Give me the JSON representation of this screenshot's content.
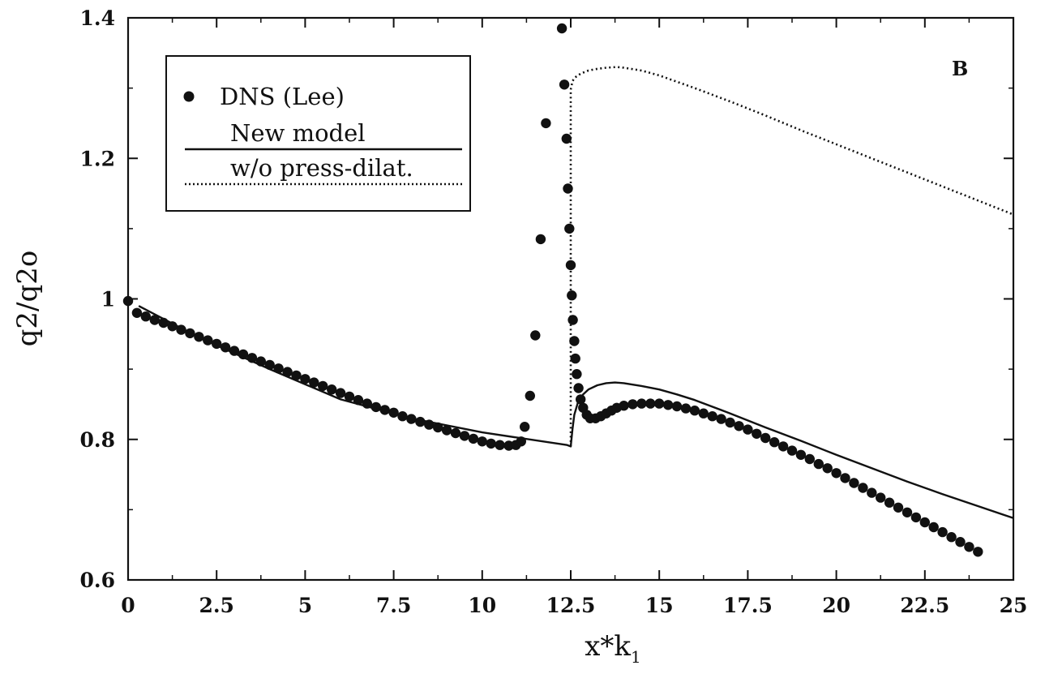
{
  "chart_data": {
    "type": "scatter",
    "panel_label": "B",
    "xlabel": "x*k",
    "xlabel_subscript": "1",
    "ylabel": "q2/q2o",
    "xlim": [
      0,
      25
    ],
    "ylim": [
      0.6,
      1.4
    ],
    "x_ticks": [
      0,
      2.5,
      5,
      7.5,
      10,
      12.5,
      15,
      17.5,
      20,
      22.5,
      25
    ],
    "x_tick_labels": [
      "0",
      "2.5",
      "5",
      "7.5",
      "10",
      "12.5",
      "15",
      "17.5",
      "20",
      "22.5",
      "25"
    ],
    "y_ticks": [
      0.6,
      0.8,
      1,
      1.2,
      1.4
    ],
    "y_tick_labels": [
      "0.6",
      "0.8",
      "1",
      "1.2",
      "1.4"
    ],
    "legend_position": "top-left",
    "colors": {
      "ink": "#111111",
      "background": "#ffffff"
    },
    "series": [
      {
        "name": "DNS (Lee)",
        "style": "markers",
        "x": [
          0,
          0.25,
          0.5,
          0.75,
          1,
          1.25,
          1.5,
          1.75,
          2,
          2.25,
          2.5,
          2.75,
          3,
          3.25,
          3.5,
          3.75,
          4,
          4.25,
          4.5,
          4.75,
          5,
          5.25,
          5.5,
          5.75,
          6,
          6.25,
          6.5,
          6.75,
          7,
          7.25,
          7.5,
          7.75,
          8,
          8.25,
          8.5,
          8.75,
          9,
          9.25,
          9.5,
          9.75,
          10,
          10.25,
          10.5,
          10.75,
          10.95,
          11.1,
          11.2,
          11.35,
          11.5,
          11.65,
          11.8,
          12.25,
          12.32,
          12.38,
          12.42,
          12.46,
          12.5,
          12.53,
          12.56,
          12.6,
          12.63,
          12.67,
          12.72,
          12.78,
          12.85,
          12.95,
          13.05,
          13.2,
          13.35,
          13.5,
          13.65,
          13.8,
          14,
          14.25,
          14.5,
          14.75,
          15,
          15.25,
          15.5,
          15.75,
          16,
          16.25,
          16.5,
          16.75,
          17,
          17.25,
          17.5,
          17.75,
          18,
          18.25,
          18.5,
          18.75,
          19,
          19.25,
          19.5,
          19.75,
          20,
          20.25,
          20.5,
          20.75,
          21,
          21.25,
          21.5,
          21.75,
          22,
          22.25,
          22.5,
          22.75,
          23,
          23.25,
          23.5,
          23.75,
          24
        ],
        "y": [
          0.997,
          0.98,
          0.975,
          0.97,
          0.966,
          0.961,
          0.956,
          0.951,
          0.946,
          0.941,
          0.936,
          0.931,
          0.926,
          0.921,
          0.916,
          0.911,
          0.906,
          0.901,
          0.896,
          0.891,
          0.886,
          0.881,
          0.876,
          0.871,
          0.866,
          0.861,
          0.856,
          0.851,
          0.846,
          0.842,
          0.838,
          0.833,
          0.829,
          0.825,
          0.821,
          0.817,
          0.813,
          0.809,
          0.805,
          0.801,
          0.797,
          0.794,
          0.792,
          0.791,
          0.792,
          0.797,
          0.818,
          0.862,
          0.948,
          1.085,
          1.25,
          1.385,
          1.305,
          1.228,
          1.157,
          1.1,
          1.048,
          1.005,
          0.97,
          0.94,
          0.915,
          0.893,
          0.873,
          0.857,
          0.845,
          0.835,
          0.83,
          0.83,
          0.833,
          0.837,
          0.841,
          0.845,
          0.848,
          0.85,
          0.851,
          0.851,
          0.851,
          0.849,
          0.847,
          0.844,
          0.841,
          0.837,
          0.833,
          0.829,
          0.824,
          0.819,
          0.814,
          0.808,
          0.802,
          0.796,
          0.79,
          0.784,
          0.778,
          0.772,
          0.765,
          0.759,
          0.752,
          0.745,
          0.738,
          0.731,
          0.724,
          0.717,
          0.71,
          0.703,
          0.696,
          0.689,
          0.682,
          0.675,
          0.668,
          0.661,
          0.654,
          0.647,
          0.64
        ]
      },
      {
        "name": "New model",
        "style": "solid",
        "x": [
          0.3,
          2,
          4,
          6,
          8,
          10,
          12.4,
          12.5,
          12.55,
          12.6,
          12.7,
          12.85,
          13,
          13.25,
          13.5,
          13.75,
          14,
          14.5,
          15,
          15.5,
          16,
          17,
          18,
          19,
          20,
          21,
          22,
          23,
          24,
          25
        ],
        "y": [
          0.99,
          0.945,
          0.9,
          0.857,
          0.83,
          0.81,
          0.792,
          0.79,
          0.815,
          0.835,
          0.852,
          0.864,
          0.871,
          0.877,
          0.88,
          0.881,
          0.88,
          0.876,
          0.871,
          0.864,
          0.856,
          0.837,
          0.817,
          0.798,
          0.778,
          0.759,
          0.74,
          0.722,
          0.705,
          0.688
        ]
      },
      {
        "name": "w/o press-dilat.",
        "style": "dotted",
        "x": [
          12.5,
          12.5,
          12.55,
          12.62,
          12.7,
          12.8,
          13,
          13.2,
          13.5,
          13.8,
          14,
          14.5,
          15,
          15.5,
          16,
          17,
          18,
          19,
          20,
          21,
          22,
          23,
          24,
          25
        ],
        "y": [
          0.79,
          1.298,
          1.31,
          1.315,
          1.318,
          1.321,
          1.325,
          1.327,
          1.329,
          1.33,
          1.329,
          1.325,
          1.318,
          1.309,
          1.3,
          1.281,
          1.261,
          1.24,
          1.22,
          1.2,
          1.18,
          1.16,
          1.14,
          1.12
        ]
      }
    ]
  }
}
